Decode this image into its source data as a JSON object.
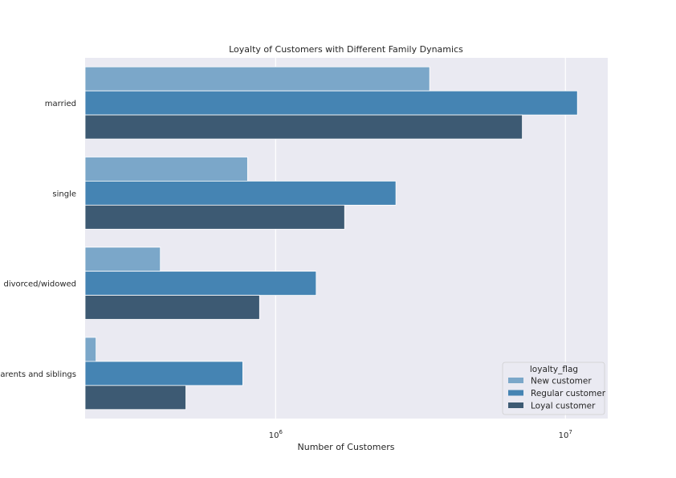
{
  "chart_data": {
    "type": "bar",
    "orientation": "horizontal",
    "title": "Loyalty of Customers with Different Family Dynamics",
    "xlabel": "Number of Customers",
    "ylabel": "",
    "xscale": "log",
    "xlim": [
      220000,
      14000000
    ],
    "xticks": [
      {
        "value": 1000000,
        "base": "10",
        "exp": "6"
      },
      {
        "value": 10000000,
        "base": "10",
        "exp": "7"
      }
    ],
    "categories": [
      "married",
      "single",
      "divorced/widowed",
      "living with parents and siblings"
    ],
    "series": [
      {
        "name": "New customer",
        "color": "#7ba7c9",
        "values": [
          3400000,
          800000,
          400000,
          240000
        ]
      },
      {
        "name": "Regular customer",
        "color": "#4584b3",
        "values": [
          11000000,
          2600000,
          1380000,
          770000
        ]
      },
      {
        "name": "Loyal customer",
        "color": "#3d5a73",
        "values": [
          7100000,
          1730000,
          880000,
          490000
        ]
      }
    ],
    "grid": true,
    "legend": {
      "title": "loyalty_flag",
      "placement": "lower-right"
    },
    "background_color": "#eaeaf2"
  }
}
